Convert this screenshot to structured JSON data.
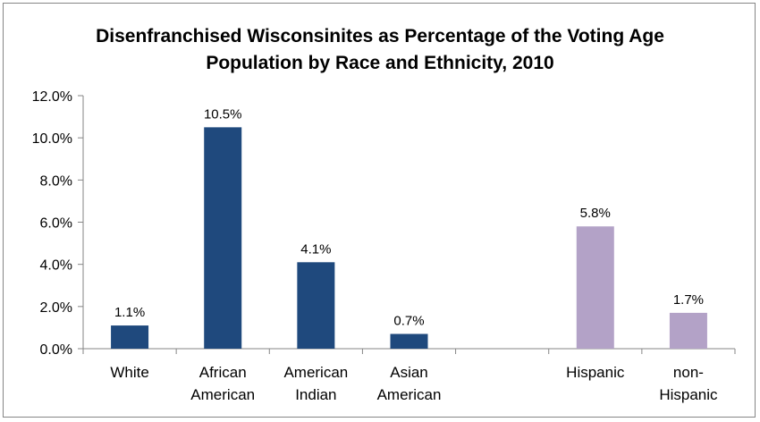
{
  "chart_data": {
    "type": "bar",
    "title_lines": [
      "Disenfranchised Wisconsinites as Percentage of the Voting Age",
      "Population by Race and Ethnicity, 2010"
    ],
    "categories": [
      [
        "White"
      ],
      [
        "African",
        "American"
      ],
      [
        "American",
        "Indian"
      ],
      [
        "Asian",
        "American"
      ],
      [
        ""
      ],
      [
        "Hispanic"
      ],
      [
        "non-",
        "Hispanic"
      ]
    ],
    "values": [
      1.1,
      10.5,
      4.1,
      0.7,
      null,
      5.8,
      1.7
    ],
    "data_labels": [
      "1.1%",
      "10.5%",
      "4.1%",
      "0.7%",
      "",
      "5.8%",
      "1.7%"
    ],
    "bar_colors": [
      "#1f497d",
      "#1f497d",
      "#1f497d",
      "#1f497d",
      "#1f497d",
      "#b3a2c7",
      "#b3a2c7"
    ],
    "yticks": [
      "0.0%",
      "2.0%",
      "4.0%",
      "6.0%",
      "8.0%",
      "10.0%",
      "12.0%"
    ],
    "ylim": [
      0,
      12
    ],
    "ytick_step": 2,
    "grid": false,
    "legend": "none"
  }
}
